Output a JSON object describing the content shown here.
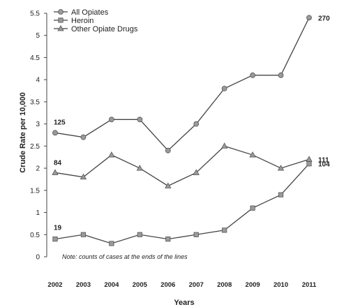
{
  "chart_data": {
    "type": "line",
    "xlabel": "Years",
    "ylabel": "Crude Rate per 10,000",
    "x": [
      "2002",
      "2003",
      "2004",
      "2005",
      "2006",
      "2007",
      "2008",
      "2009",
      "2010",
      "2011"
    ],
    "ylim": [
      0,
      5.5
    ],
    "yticks": [
      "0",
      "0.5",
      "1",
      "1.5",
      "2",
      "2.5",
      "3",
      "3.5",
      "4",
      "4.5",
      "5",
      "5.5"
    ],
    "legend_position": "top-left",
    "note": "Note: counts of cases at the ends of the lines",
    "series": [
      {
        "name": "All Opiates",
        "marker": "circle",
        "color": "#8a8a8a",
        "values": [
          2.8,
          2.7,
          3.1,
          3.1,
          2.4,
          3.0,
          3.8,
          4.1,
          4.1,
          5.4
        ],
        "start_label": "125",
        "end_label": "270"
      },
      {
        "name": "Heroin",
        "marker": "square",
        "color": "#8a8a8a",
        "values": [
          0.4,
          0.5,
          0.3,
          0.5,
          0.4,
          0.5,
          0.6,
          1.1,
          1.4,
          2.1
        ],
        "start_label": "19",
        "end_label": "104"
      },
      {
        "name": "Other Opiate Drugs",
        "marker": "triangle",
        "color": "#8a8a8a",
        "values": [
          1.9,
          1.8,
          2.3,
          2.0,
          1.6,
          1.9,
          2.5,
          2.3,
          2.0,
          2.2
        ],
        "start_label": "84",
        "end_label": "111"
      }
    ]
  }
}
